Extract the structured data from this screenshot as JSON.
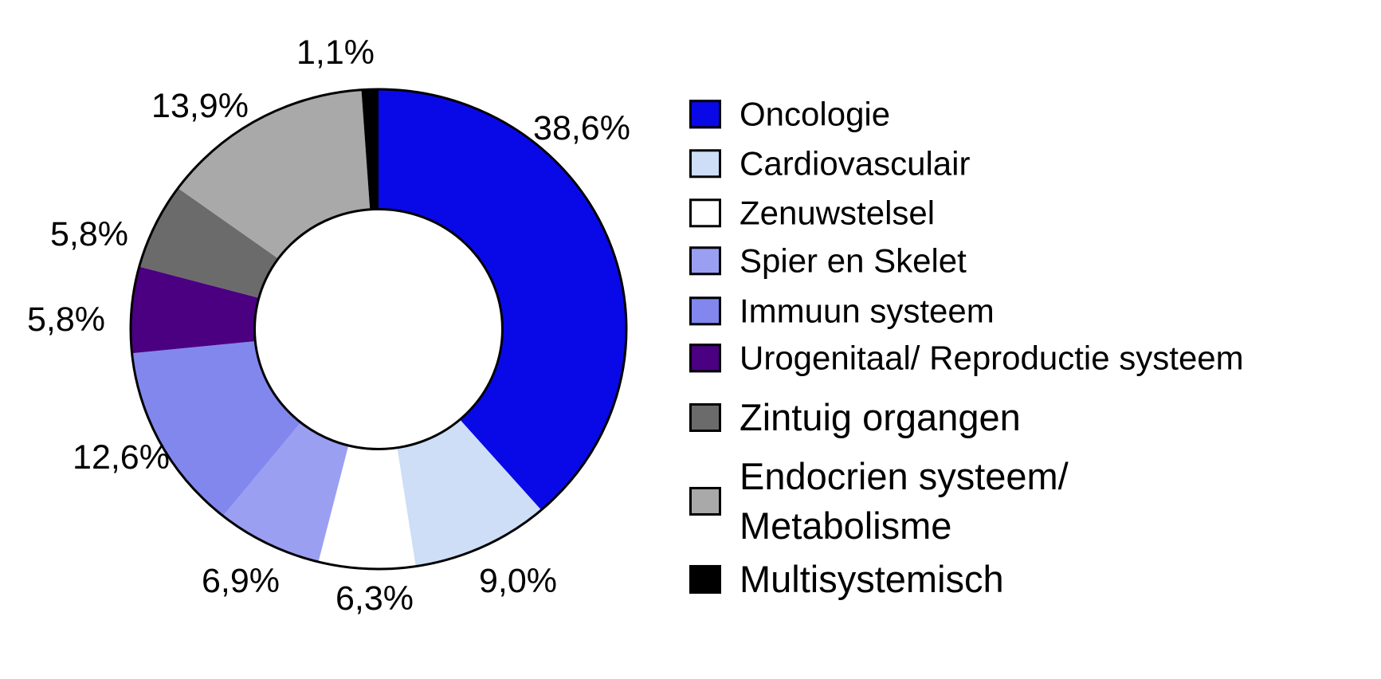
{
  "chart_data": {
    "type": "pie",
    "subtype": "donut",
    "title": "",
    "unit": "%",
    "total": 100.0,
    "direction": "clockwise",
    "start_angle_deg": 0,
    "donut_hole_ratio": 0.5,
    "legend_position": "right",
    "outline_color": "#000000",
    "background_color": "#FFFFFF",
    "slices": [
      {
        "label": "Oncologie",
        "legend_label": "Oncologie",
        "value": 38.6,
        "display": "38,6%",
        "color": "#0909E8"
      },
      {
        "label": "Cardiovasculair",
        "legend_label": "Cardiovasculair",
        "value": 9.0,
        "display": "9,0%",
        "color": "#CDDEF6"
      },
      {
        "label": "Zenuwstelsel",
        "legend_label": "Zenuwstelsel",
        "value": 6.3,
        "display": "6,3%",
        "color": "#FFFFFF"
      },
      {
        "label": "Spier en Skelet",
        "legend_label": "Spier en Skelet",
        "value": 6.9,
        "display": "6,9%",
        "color": "#9B9FF2"
      },
      {
        "label": "Immuun systeem",
        "legend_label": "Immuun systeem",
        "value": 12.6,
        "display": "12,6%",
        "color": "#8287EE"
      },
      {
        "label": "Urogenitaal/ Reproductie systeem",
        "legend_label": "Urogenitaal/ Reproductie systeem",
        "value": 5.8,
        "display": "5,8%",
        "color": "#4B0082"
      },
      {
        "label": "Zintuig organgen",
        "legend_label": "Zintuig organgen",
        "value": 5.8,
        "display": "5,8%",
        "color": "#6B6B6B"
      },
      {
        "label": "Endocrien systeem/ Metabolisme",
        "legend_label": "Endocrien systeem/\nMetabolisme",
        "value": 13.9,
        "display": "13,9%",
        "color": "#A9A9A9"
      },
      {
        "label": "Multisystemisch",
        "legend_label": "Multisystemisch",
        "value": 1.1,
        "display": "1,1%",
        "color": "#000000"
      }
    ]
  }
}
